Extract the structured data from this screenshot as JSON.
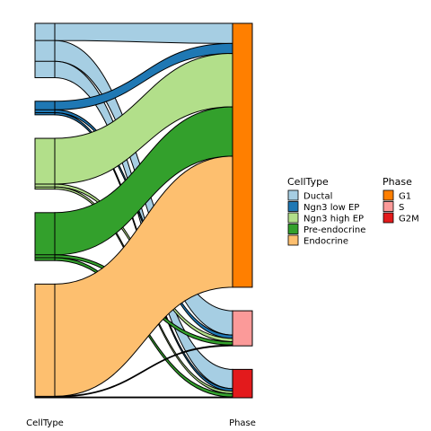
{
  "chart_data": {
    "type": "sankey",
    "axis_labels": [
      "CellType",
      "Phase"
    ],
    "legend_position": "right",
    "legends": [
      {
        "title": "CellType",
        "items": [
          {
            "label": "Ductal",
            "color": "#a6cee3"
          },
          {
            "label": "Ngn3 low EP",
            "color": "#1f78b4"
          },
          {
            "label": "Ngn3 high EP",
            "color": "#b2df8a"
          },
          {
            "label": "Pre-endocrine",
            "color": "#33a02c"
          },
          {
            "label": "Endocrine",
            "color": "#fdbf6f"
          }
        ]
      },
      {
        "title": "Phase",
        "items": [
          {
            "label": "G1",
            "color": "#ff7f00"
          },
          {
            "label": "S",
            "color": "#fb9a99"
          },
          {
            "label": "G2M",
            "color": "#e31a1c"
          }
        ]
      }
    ],
    "cell_types": [
      "Ductal",
      "Ngn3 low EP",
      "Ngn3 high EP",
      "Pre-endocrine",
      "Endocrine"
    ],
    "phases": [
      "G1",
      "S",
      "G2M"
    ],
    "flows": [
      {
        "from": "Ductal",
        "to": "G1",
        "value": 240
      },
      {
        "from": "Ductal",
        "to": "S",
        "value": 290
      },
      {
        "from": "Ductal",
        "to": "G2M",
        "value": 230
      },
      {
        "from": "Ngn3 low EP",
        "to": "G1",
        "value": 120
      },
      {
        "from": "Ngn3 low EP",
        "to": "S",
        "value": 40
      },
      {
        "from": "Ngn3 low EP",
        "to": "G2M",
        "value": 30
      },
      {
        "from": "Ngn3 high EP",
        "to": "G1",
        "value": 640
      },
      {
        "from": "Ngn3 high EP",
        "to": "S",
        "value": 40
      },
      {
        "from": "Ngn3 high EP",
        "to": "G2M",
        "value": 30
      },
      {
        "from": "Pre-endocrine",
        "to": "G1",
        "value": 590
      },
      {
        "from": "Pre-endocrine",
        "to": "S",
        "value": 40
      },
      {
        "from": "Pre-endocrine",
        "to": "G2M",
        "value": 40
      },
      {
        "from": "Endocrine",
        "to": "G1",
        "value": 1570
      },
      {
        "from": "Endocrine",
        "to": "S",
        "value": 10
      },
      {
        "from": "Endocrine",
        "to": "G2M",
        "value": 10
      }
    ]
  }
}
